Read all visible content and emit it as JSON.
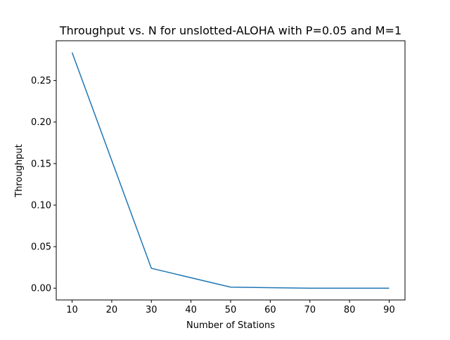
{
  "chart_data": {
    "type": "line",
    "title": "Throughput vs. N for unslotted-ALOHA with P=0.05 and M=1",
    "xlabel": "Number of Stations",
    "ylabel": "Throughput",
    "x": [
      10,
      30,
      50,
      70,
      90
    ],
    "series": [
      {
        "values": [
          0.2837,
          0.0239,
          0.0012,
          0.0,
          0.0
        ],
        "color": "#1f77b4"
      }
    ],
    "xlim": [
      6,
      94
    ],
    "ylim": [
      -0.0142,
      0.2979
    ],
    "xticks": [
      10,
      20,
      30,
      40,
      50,
      60,
      70,
      80,
      90
    ],
    "xtick_labels": [
      "10",
      "20",
      "30",
      "40",
      "50",
      "60",
      "70",
      "80",
      "90"
    ],
    "yticks": [
      0.0,
      0.05,
      0.1,
      0.15,
      0.2,
      0.25
    ],
    "ytick_labels": [
      "0.00",
      "0.05",
      "0.10",
      "0.15",
      "0.20",
      "0.25"
    ],
    "grid": false,
    "legend": false
  }
}
